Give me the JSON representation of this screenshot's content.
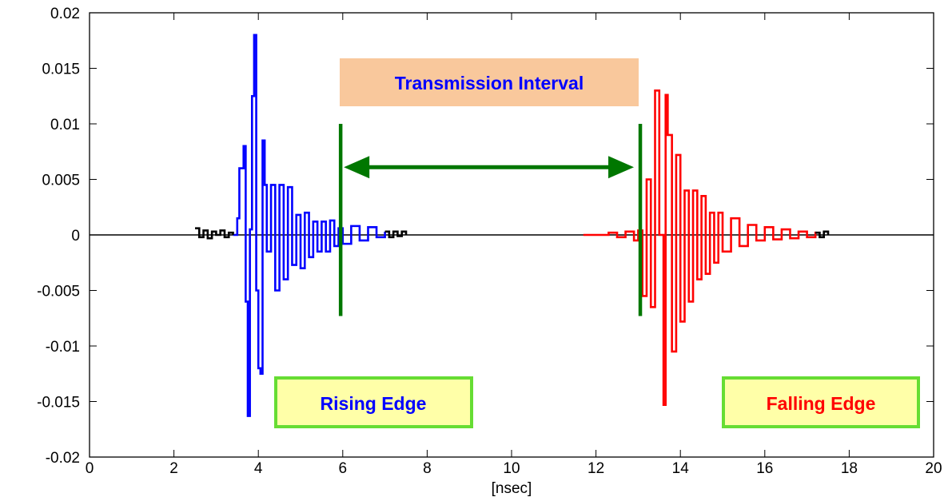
{
  "chart_data": {
    "type": "line",
    "title": "",
    "xlabel": "[nsec]",
    "ylabel": "",
    "xlim": [
      0,
      20
    ],
    "ylim": [
      -0.02,
      0.02
    ],
    "xticks": [
      0,
      2,
      4,
      6,
      8,
      10,
      12,
      14,
      16,
      18,
      20
    ],
    "yticks": [
      -0.02,
      -0.015,
      -0.01,
      -0.005,
      0,
      0.005,
      0.01,
      0.015,
      0.02
    ],
    "xtick_labels": [
      "0",
      "2",
      "4",
      "6",
      "8",
      "10",
      "12",
      "14",
      "16",
      "18",
      "20"
    ],
    "ytick_labels": [
      "-0.02",
      "-0.015",
      "-0.01",
      "-0.005",
      "0",
      "0.005",
      "0.01",
      "0.015",
      "0.02"
    ],
    "grid": false,
    "zero_line": true,
    "series": [
      {
        "color": "#0000ff",
        "x": [
          3.4,
          3.5,
          3.55,
          3.65,
          3.7,
          3.75,
          3.8,
          3.85,
          3.9,
          3.95,
          4.0,
          4.05,
          4.1,
          4.15,
          4.2,
          4.3,
          4.4,
          4.5,
          4.6,
          4.7,
          4.8,
          4.9,
          5.0,
          5.1,
          5.2,
          5.3,
          5.4,
          5.5,
          5.6,
          5.7,
          5.8,
          5.9,
          6.0,
          6.2,
          6.4,
          6.6,
          6.8,
          7.0
        ],
        "y": [
          0.0,
          0.0015,
          0.006,
          0.008,
          -0.006,
          -0.0163,
          0.0005,
          0.0125,
          0.018,
          -0.005,
          -0.012,
          -0.0125,
          0.0085,
          0.0045,
          -0.0015,
          0.0045,
          -0.005,
          0.0045,
          -0.004,
          0.0043,
          -0.0027,
          0.0018,
          -0.003,
          0.002,
          -0.002,
          0.0012,
          -0.0015,
          0.0012,
          -0.0015,
          0.0013,
          -0.001,
          0.0006,
          -0.0008,
          0.0008,
          -0.0005,
          0.0007,
          -0.0002,
          0.0003
        ]
      },
      {
        "color": "#000000",
        "x": [
          2.5,
          2.6,
          2.7,
          2.8,
          2.9,
          3.0,
          3.1,
          3.2,
          3.3,
          3.4
        ],
        "y": [
          0.0006,
          -0.0002,
          0.0004,
          -0.0003,
          0.0003,
          0.0,
          0.0004,
          -0.0002,
          0.0002,
          0.0
        ]
      },
      {
        "color": "#000000",
        "x": [
          7.0,
          7.1,
          7.2,
          7.3,
          7.4,
          7.5
        ],
        "y": [
          0.0003,
          -0.0002,
          0.0003,
          -0.0001,
          0.0003,
          0.0
        ]
      },
      {
        "color": "#ff0000",
        "x": [
          11.7,
          12.0,
          12.3,
          12.5,
          12.7,
          12.9,
          13.0,
          13.1,
          13.2,
          13.3,
          13.4,
          13.5,
          13.6,
          13.65,
          13.7,
          13.8,
          13.9,
          14.0,
          14.1,
          14.2,
          14.3,
          14.4,
          14.5,
          14.6,
          14.7,
          14.8,
          14.9,
          15.0,
          15.2,
          15.4,
          15.6,
          15.8,
          16.0,
          16.2,
          16.4,
          16.6,
          16.8,
          17.0,
          17.2
        ],
        "y": [
          0.0,
          0.0,
          0.0002,
          -0.0002,
          0.0003,
          -0.0005,
          0.0004,
          -0.0055,
          0.005,
          -0.0065,
          0.013,
          0.0,
          -0.0153,
          0.0126,
          0.009,
          -0.0105,
          0.0072,
          -0.0078,
          0.004,
          -0.006,
          0.004,
          -0.004,
          0.0035,
          -0.0035,
          0.002,
          -0.0025,
          0.002,
          -0.0015,
          0.0015,
          -0.001,
          0.0009,
          -0.0005,
          0.0007,
          -0.0004,
          0.0005,
          -0.0003,
          0.0003,
          -0.0002,
          0.0003
        ]
      },
      {
        "color": "#000000",
        "x": [
          17.2,
          17.3,
          17.4,
          17.5
        ],
        "y": [
          0.0002,
          -0.0002,
          0.0003,
          0.0
        ]
      }
    ],
    "markers": [
      {
        "x": 5.95,
        "y_top": 0.01,
        "y_bottom": -0.0073,
        "color": "#007700"
      },
      {
        "x": 13.05,
        "y_top": 0.01,
        "y_bottom": -0.0073,
        "color": "#007700"
      }
    ],
    "arrow": {
      "x1": 5.95,
      "x2": 13.05,
      "y": 0.0061,
      "color": "#007700"
    },
    "annotations": [
      {
        "key": "transmission",
        "text": "Transmission Interval",
        "text_color": "#0000ff",
        "fill": "#f9c89c",
        "border": "none"
      },
      {
        "key": "rising",
        "text": "Rising Edge",
        "text_color": "#0000ff",
        "fill": "#ffffa8",
        "border": "#66dd33"
      },
      {
        "key": "falling",
        "text": "Falling Edge",
        "text_color": "#ff0000",
        "fill": "#ffffa8",
        "border": "#66dd33"
      }
    ]
  }
}
